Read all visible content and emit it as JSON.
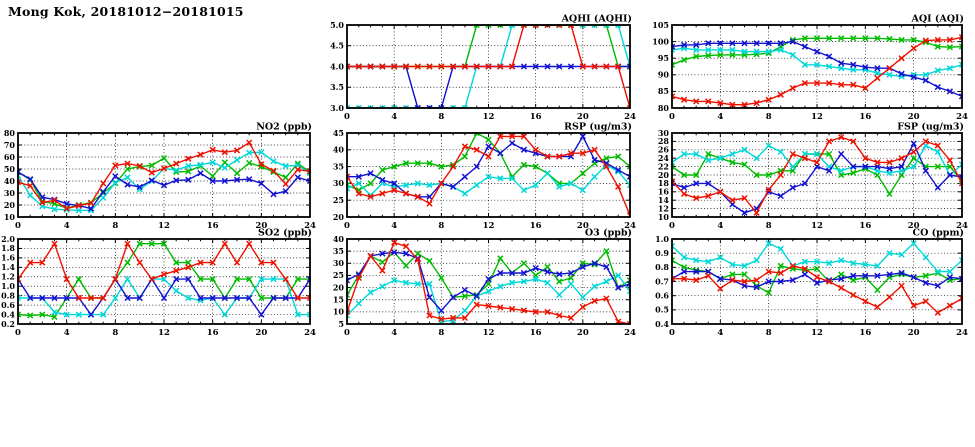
{
  "title": "Mong Kok, 20181012−20181015",
  "x_axis": {
    "min": 0,
    "max": 24,
    "step": 1,
    "tick_values": [
      0,
      4,
      8,
      12,
      16,
      20,
      24
    ],
    "tick_labels": [
      "0",
      "4",
      "8",
      "12",
      "16",
      "20",
      "24"
    ]
  },
  "series_colors": {
    "red": "#ee1100",
    "green": "#00bb00",
    "blue": "#1212d0",
    "cyan": "#00d8d8"
  },
  "chart_data": [
    {
      "id": "AQHI",
      "type": "line",
      "title": "AQHI (AQHI)",
      "ylim": [
        3.0,
        5.0
      ],
      "ytick_values": [
        3.0,
        3.5,
        4.0,
        4.5,
        5.0
      ],
      "ytick_labels": [
        "3.0",
        "3.5",
        "4.0",
        "4.5",
        "5.0"
      ],
      "series": [
        {
          "name": "red",
          "values": [
            4,
            4,
            4,
            4,
            4,
            4,
            4,
            4,
            4,
            4,
            4,
            4,
            4,
            4,
            4,
            5,
            5,
            5,
            5,
            5,
            4,
            4,
            4,
            4,
            3
          ]
        },
        {
          "name": "green",
          "values": [
            4,
            4,
            4,
            4,
            4,
            4,
            4,
            4,
            4,
            4,
            4,
            5,
            5,
            5,
            5,
            5,
            5,
            5,
            5,
            5,
            5,
            5,
            5,
            4,
            4
          ]
        },
        {
          "name": "blue",
          "values": [
            4,
            4,
            4,
            4,
            4,
            4,
            3,
            3,
            3,
            4,
            4,
            4,
            4,
            4,
            4,
            4,
            4,
            4,
            4,
            4,
            4,
            4,
            4,
            4,
            4
          ]
        },
        {
          "name": "cyan",
          "values": [
            3,
            3,
            3,
            3,
            3,
            3,
            3,
            3,
            3,
            3,
            3,
            4,
            4,
            4,
            5,
            5,
            5,
            5,
            5,
            5,
            5,
            5,
            5,
            5,
            4
          ]
        }
      ]
    },
    {
      "id": "AQI",
      "type": "line",
      "title": "AQI (AQI)",
      "ylim": [
        80,
        105
      ],
      "ytick_values": [
        80,
        85,
        90,
        95,
        100,
        105
      ],
      "ytick_labels": [
        "80",
        "85",
        "90",
        "95",
        "100",
        "105"
      ],
      "series": [
        {
          "name": "red",
          "values": [
            83.5,
            82.5,
            82,
            82,
            81.5,
            81,
            81,
            81.5,
            82.5,
            84,
            86,
            87.5,
            87.5,
            87.5,
            87,
            87,
            86,
            89,
            92,
            95,
            98,
            100.3,
            100.5,
            100.5,
            101.3
          ]
        },
        {
          "name": "green",
          "values": [
            93,
            94.5,
            95.5,
            95.8,
            96,
            96,
            96,
            96.2,
            96.5,
            98.5,
            100.5,
            101,
            101,
            101,
            101,
            101,
            101,
            101,
            100.8,
            100.5,
            100.5,
            99.8,
            98.5,
            98.3,
            98.5
          ]
        },
        {
          "name": "blue",
          "values": [
            98.5,
            99,
            99,
            99.5,
            99.5,
            99.5,
            99.5,
            99.5,
            99.5,
            99.5,
            100,
            98.5,
            97,
            95.5,
            93.5,
            93,
            92.3,
            92,
            92,
            90.3,
            89.3,
            88.3,
            86.3,
            85,
            83.5
          ]
        },
        {
          "name": "cyan",
          "values": [
            97.5,
            98,
            97.5,
            97.5,
            97.5,
            97.5,
            97,
            97,
            97,
            97.5,
            96,
            93,
            93,
            92.5,
            92,
            91.5,
            91.5,
            90.5,
            90,
            89.5,
            90,
            90,
            91.3,
            92,
            93
          ]
        }
      ]
    },
    {
      "id": "NO2",
      "type": "line",
      "title": "NO2 (ppb)",
      "ylim": [
        10,
        80
      ],
      "ytick_values": [
        10,
        20,
        30,
        40,
        50,
        60,
        70,
        80
      ],
      "ytick_labels": [
        "10",
        "20",
        "30",
        "40",
        "50",
        "60",
        "70",
        "80"
      ],
      "series": [
        {
          "name": "red",
          "values": [
            39,
            36,
            22,
            24,
            17,
            19.5,
            21.5,
            38,
            53,
            54.5,
            52.5,
            47,
            50.5,
            54.5,
            58.5,
            62,
            66,
            64,
            65.5,
            72,
            54,
            48.5,
            37.5,
            49.5,
            48
          ]
        },
        {
          "name": "green",
          "values": [
            47.5,
            41,
            23,
            21,
            17.5,
            20,
            22,
            30,
            38,
            50,
            52,
            53,
            59,
            47.5,
            48,
            52.5,
            44,
            55.5,
            46.5,
            55,
            52,
            47.5,
            43,
            54.5,
            47.5
          ]
        },
        {
          "name": "blue",
          "values": [
            47.5,
            41.5,
            26.5,
            24.5,
            21,
            19.5,
            17,
            31,
            44,
            37,
            35,
            40.5,
            36.5,
            40.5,
            41,
            46.5,
            40,
            40,
            41,
            41.5,
            38,
            29,
            31.5,
            43,
            40
          ]
        },
        {
          "name": "cyan",
          "values": [
            44.5,
            28,
            19,
            16.5,
            16,
            15.5,
            15.5,
            26,
            38.5,
            43,
            33,
            40,
            50.5,
            49,
            52.5,
            53.5,
            55.5,
            51,
            57.5,
            63.5,
            64,
            56.5,
            52.5,
            53,
            46.5
          ]
        }
      ]
    },
    {
      "id": "RSP",
      "type": "line",
      "title": "RSP (ug/m3)",
      "ylim": [
        20,
        45
      ],
      "ytick_values": [
        20,
        25,
        30,
        35,
        40,
        45
      ],
      "ytick_labels": [
        "20",
        "25",
        "30",
        "35",
        "40",
        "45"
      ],
      "series": [
        {
          "name": "red",
          "values": [
            32,
            27,
            26,
            27,
            28,
            27,
            26,
            24,
            30,
            35,
            41,
            40,
            38,
            44,
            44,
            44,
            40,
            38,
            38,
            39,
            39,
            40,
            35,
            29,
            20.5
          ]
        },
        {
          "name": "green",
          "values": [
            29.5,
            28,
            30,
            34,
            35,
            36,
            36,
            36,
            35,
            35.5,
            38,
            45,
            43,
            39,
            32,
            35.5,
            35,
            33,
            30,
            30,
            33,
            36,
            37.5,
            38,
            35
          ]
        },
        {
          "name": "blue",
          "values": [
            32,
            32,
            33,
            31,
            30,
            27,
            26,
            26,
            30,
            29,
            32,
            35,
            41,
            39,
            42,
            40,
            39,
            38,
            38,
            38,
            44,
            37,
            36,
            34,
            32
          ]
        },
        {
          "name": "cyan",
          "values": [
            28.5,
            30,
            26.5,
            30,
            29,
            29.5,
            30,
            29.5,
            30,
            29,
            27,
            29.5,
            32,
            31.5,
            31.5,
            28,
            29.5,
            33,
            29,
            30,
            28,
            32,
            35.5,
            33.5,
            29.5
          ]
        }
      ]
    },
    {
      "id": "FSP",
      "type": "line",
      "title": "FSP (ug/m3)",
      "ylim": [
        10,
        30
      ],
      "ytick_values": [
        10,
        12,
        14,
        16,
        18,
        20,
        22,
        24,
        26,
        28,
        30
      ],
      "ytick_labels": [
        "10",
        "12",
        "14",
        "16",
        "18",
        "20",
        "22",
        "24",
        "26",
        "28",
        "30"
      ],
      "series": [
        {
          "name": "red",
          "values": [
            18.5,
            15.5,
            14.5,
            15,
            16,
            14,
            14.5,
            11,
            16.5,
            20,
            25,
            24,
            23,
            28,
            29,
            28,
            24,
            23,
            23,
            24,
            25.5,
            28,
            27,
            23.5,
            18
          ]
        },
        {
          "name": "green",
          "values": [
            22,
            20,
            20,
            25,
            24,
            23,
            22.5,
            20,
            20,
            21,
            21,
            25,
            25,
            25,
            20,
            20.5,
            21.5,
            20,
            15.5,
            20,
            24,
            22,
            22,
            22,
            18.5
          ]
        },
        {
          "name": "blue",
          "values": [
            18,
            17,
            18,
            18,
            16,
            13,
            11,
            12,
            16,
            15,
            17,
            18,
            22,
            21,
            25,
            22,
            22,
            22,
            21.5,
            22,
            27.5,
            21,
            17,
            20,
            19.5
          ]
        },
        {
          "name": "cyan",
          "values": [
            23,
            25,
            25,
            23.5,
            24,
            25,
            26,
            24,
            27,
            25.5,
            22,
            25,
            25,
            22,
            21,
            22,
            22,
            21,
            20.5,
            21,
            22,
            27,
            25.5,
            20,
            22.5
          ]
        }
      ]
    },
    {
      "id": "SO2",
      "type": "line",
      "title": "SO2 (ppb)",
      "ylim": [
        0.2,
        2.0
      ],
      "ytick_values": [
        0.2,
        0.4,
        0.6,
        0.8,
        1.0,
        1.2,
        1.4,
        1.6,
        1.8,
        2.0
      ],
      "ytick_labels": [
        "0.2",
        "0.4",
        "0.6",
        "0.8",
        "1.0",
        "1.2",
        "1.4",
        "1.6",
        "1.8",
        "2.0"
      ],
      "series": [
        {
          "name": "red",
          "values": [
            1.15,
            1.5,
            1.5,
            1.9,
            1.15,
            0.75,
            0.75,
            0.75,
            1.15,
            1.9,
            1.5,
            1.15,
            1.25,
            1.33,
            1.4,
            1.5,
            1.5,
            1.9,
            1.5,
            1.9,
            1.5,
            1.5,
            1.15,
            0.75,
            0.75
          ]
        },
        {
          "name": "green",
          "values": [
            0.4,
            0.38,
            0.4,
            0.35,
            0.75,
            1.15,
            0.75,
            0.75,
            1.15,
            1.5,
            1.9,
            1.9,
            1.9,
            1.5,
            1.5,
            1.15,
            1.15,
            0.75,
            1.15,
            1.15,
            0.75,
            0.75,
            0.75,
            1.15,
            1.15
          ]
        },
        {
          "name": "blue",
          "values": [
            1.15,
            0.75,
            0.75,
            0.75,
            0.75,
            0.75,
            0.4,
            0.75,
            1.15,
            0.75,
            0.75,
            1.15,
            0.75,
            1.15,
            1.15,
            0.75,
            0.75,
            0.75,
            0.75,
            0.75,
            0.4,
            0.75,
            0.75,
            0.75,
            1.15
          ]
        },
        {
          "name": "cyan",
          "values": [
            0.75,
            0.75,
            0.75,
            0.45,
            0.4,
            0.4,
            0.4,
            0.4,
            0.75,
            1.15,
            0.75,
            1.15,
            1.15,
            0.9,
            0.75,
            0.7,
            0.75,
            0.4,
            0.75,
            0.75,
            1.15,
            1.15,
            1.15,
            0.4,
            0.4
          ]
        }
      ]
    },
    {
      "id": "O3",
      "type": "line",
      "title": "O3 (ppb)",
      "ylim": [
        5,
        40
      ],
      "ytick_values": [
        5,
        10,
        15,
        20,
        25,
        30,
        35,
        40
      ],
      "ytick_labels": [
        "5",
        "10",
        "15",
        "20",
        "25",
        "30",
        "35",
        "40"
      ],
      "series": [
        {
          "name": "red",
          "values": [
            10,
            24,
            33,
            27,
            38.5,
            37,
            31.5,
            8.5,
            7,
            7.5,
            7.5,
            13,
            12.4,
            11.8,
            11.2,
            10.6,
            10,
            10,
            8.5,
            7.5,
            12,
            14.5,
            15.5,
            6,
            5
          ]
        },
        {
          "name": "green",
          "values": [
            17,
            25,
            33,
            30.5,
            34.5,
            29,
            34,
            31,
            24,
            16,
            16.5,
            17,
            21.5,
            32,
            26,
            30,
            25,
            28.5,
            22.5,
            24,
            30,
            29.5,
            35,
            20,
            23
          ]
        },
        {
          "name": "blue",
          "values": [
            23,
            25.5,
            33,
            34,
            34.5,
            34,
            32,
            16,
            10.5,
            16,
            19,
            16.5,
            23.5,
            26,
            26,
            26,
            28,
            26.5,
            25.5,
            26,
            28.5,
            30,
            28.5,
            20,
            21.5
          ]
        },
        {
          "name": "cyan",
          "values": [
            8.5,
            13.5,
            18,
            20.5,
            23,
            22,
            21.5,
            21.5,
            6,
            6.5,
            10.5,
            16.5,
            18.5,
            20.5,
            22,
            22.5,
            23.5,
            22,
            17,
            21.5,
            16,
            20.5,
            22.5,
            25,
            18.5
          ]
        }
      ]
    },
    {
      "id": "CO",
      "type": "line",
      "title": "CO (ppm)",
      "ylim": [
        0.4,
        1.0
      ],
      "ytick_values": [
        0.4,
        0.5,
        0.6,
        0.7,
        0.8,
        0.9,
        1.0
      ],
      "ytick_labels": [
        "0.4",
        "0.5",
        "0.6",
        "0.7",
        "0.8",
        "0.9",
        "1.0"
      ],
      "series": [
        {
          "name": "red",
          "values": [
            0.72,
            0.72,
            0.71,
            0.74,
            0.65,
            0.71,
            0.7,
            0.71,
            0.77,
            0.76,
            0.81,
            0.79,
            0.73,
            0.7,
            0.655,
            0.605,
            0.56,
            0.52,
            0.59,
            0.67,
            0.53,
            0.56,
            0.48,
            0.53,
            0.58
          ]
        },
        {
          "name": "green",
          "values": [
            0.85,
            0.8,
            0.78,
            0.77,
            0.72,
            0.75,
            0.75,
            0.67,
            0.62,
            0.81,
            0.79,
            0.78,
            0.79,
            0.7,
            0.75,
            0.71,
            0.73,
            0.64,
            0.73,
            0.75,
            0.73,
            0.74,
            0.76,
            0.71,
            0.72
          ]
        },
        {
          "name": "blue",
          "values": [
            0.72,
            0.77,
            0.77,
            0.77,
            0.72,
            0.71,
            0.67,
            0.66,
            0.7,
            0.7,
            0.71,
            0.75,
            0.69,
            0.71,
            0.72,
            0.74,
            0.74,
            0.74,
            0.75,
            0.76,
            0.73,
            0.69,
            0.67,
            0.73,
            0.72
          ]
        },
        {
          "name": "cyan",
          "values": [
            0.95,
            0.87,
            0.85,
            0.84,
            0.87,
            0.82,
            0.81,
            0.85,
            0.97,
            0.93,
            0.81,
            0.84,
            0.84,
            0.83,
            0.85,
            0.83,
            0.82,
            0.81,
            0.9,
            0.89,
            0.97,
            0.87,
            0.77,
            0.77,
            0.85
          ]
        }
      ]
    }
  ]
}
